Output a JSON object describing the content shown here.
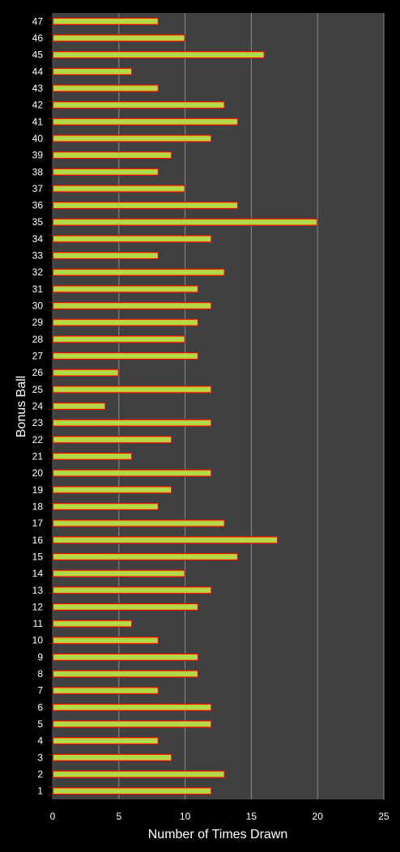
{
  "chart_data": {
    "type": "bar",
    "orientation": "horizontal",
    "xlabel": "Number of Times Drawn",
    "ylabel": "Bonus Ball",
    "xlim": [
      0,
      25
    ],
    "x_ticks": [
      0,
      5,
      10,
      15,
      20,
      25
    ],
    "grid": "vertical",
    "legend": "none",
    "colors": {
      "background": "#000000",
      "plot_background": "#404040",
      "gridline": "#8c8c8c",
      "bar_fill_edge": "#d4c21a",
      "bar_fill_center": "#a8e05a",
      "bar_border": "#e01010",
      "text": "#ffffff"
    },
    "categories": [
      "1",
      "2",
      "3",
      "4",
      "5",
      "6",
      "7",
      "8",
      "9",
      "10",
      "11",
      "12",
      "13",
      "14",
      "15",
      "16",
      "17",
      "18",
      "19",
      "20",
      "21",
      "22",
      "23",
      "24",
      "25",
      "26",
      "27",
      "28",
      "29",
      "30",
      "31",
      "32",
      "33",
      "34",
      "35",
      "36",
      "37",
      "38",
      "39",
      "40",
      "41",
      "42",
      "43",
      "44",
      "45",
      "46",
      "47"
    ],
    "values": [
      12,
      13,
      9,
      8,
      12,
      12,
      8,
      11,
      11,
      8,
      6,
      11,
      12,
      10,
      14,
      17,
      13,
      8,
      9,
      12,
      6,
      9,
      12,
      4,
      12,
      5,
      11,
      10,
      11,
      12,
      11,
      13,
      8,
      12,
      20,
      14,
      10,
      8,
      9,
      12,
      14,
      13,
      8,
      6,
      16,
      10,
      8
    ]
  }
}
